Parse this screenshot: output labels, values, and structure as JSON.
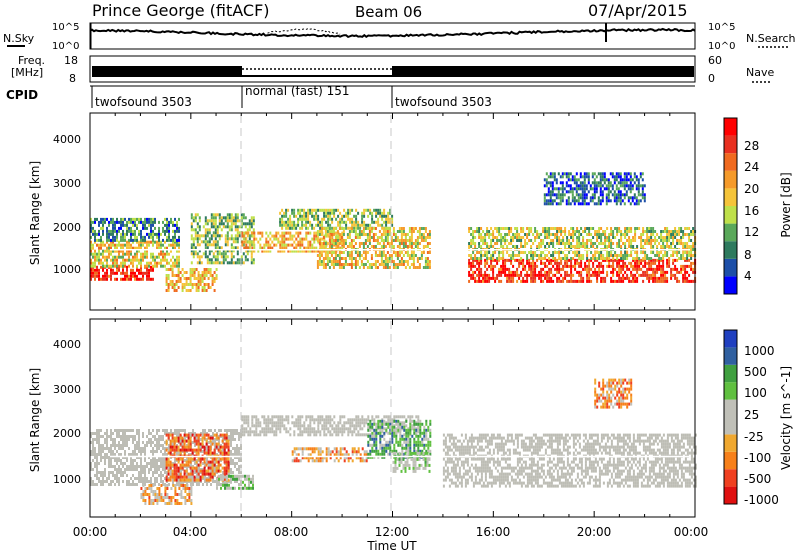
{
  "header": {
    "title": "Prince George (fitACF)",
    "beam": "Beam 06",
    "date": "07/Apr/2015"
  },
  "noise_panel": {
    "left_label": "N.Sky",
    "right_label": "N.Search",
    "left_ticks": [
      "10^5",
      "10^0"
    ],
    "right_ticks": [
      "10^5",
      "10^0"
    ]
  },
  "freq_panel": {
    "left_label_line1": "Freq.",
    "left_label_line2": "[MHz]",
    "left_ticks": [
      "18",
      "8"
    ],
    "right_label": "Nave",
    "right_ticks": [
      "60",
      "0"
    ]
  },
  "cpid_panel": {
    "label": "CPID",
    "segments": [
      {
        "name": "twofsound 3503",
        "start_h": 0,
        "end_h": 6
      },
      {
        "name": "normal (fast) 151",
        "start_h": 6,
        "end_h": 12
      },
      {
        "name": "twofsound 3503",
        "start_h": 12,
        "end_h": 24
      }
    ]
  },
  "axes": {
    "x_label": "Time UT",
    "x_ticks": [
      "00:00",
      "04:00",
      "08:00",
      "12:00",
      "16:00",
      "20:00",
      "00:00"
    ],
    "y_label": "Slant Range [km]",
    "y_ticks": [
      "1000",
      "2000",
      "3000",
      "4000"
    ]
  },
  "colors": {
    "power": [
      "#0000ff",
      "#1d4fa8",
      "#2e7a5e",
      "#5aa85a",
      "#bfe04a",
      "#f5c43a",
      "#f59a2a",
      "#f06a1f",
      "#e83020",
      "#ff0000"
    ],
    "velocity": [
      "#e01010",
      "#f04020",
      "#f7801a",
      "#f0a830",
      "#c0c0b8",
      "#c0c0b8",
      "#60c040",
      "#40a040",
      "#3060a0",
      "#2040c0"
    ],
    "ground_scatter": "#bdbdb5"
  },
  "power_colorbar": {
    "label": "Power [dB]",
    "ticks": [
      "28",
      "24",
      "20",
      "16",
      "12",
      "8",
      "4"
    ]
  },
  "velocity_colorbar": {
    "label": "Velocity [m s^-1]",
    "ticks": [
      "1000",
      "500",
      "100",
      "25",
      "-25",
      "-100",
      "-500",
      "-1000"
    ]
  },
  "chart_data": {
    "type": "heatmap",
    "title": "Prince George (fitACF)",
    "xlabel": "Time UT",
    "ylabel": "Slant Range [km]",
    "xlim": [
      0,
      24
    ],
    "ylim": [
      180,
      4500
    ],
    "panels": [
      {
        "name": "Power",
        "unit": "dB",
        "color_range": [
          0,
          30
        ],
        "regions": [
          {
            "t": [
              0,
              2.5
            ],
            "r": [
              850,
              1150
            ],
            "v": 26
          },
          {
            "t": [
              0,
              3.5
            ],
            "r": [
              1150,
              1700
            ],
            "v": 16
          },
          {
            "t": [
              0,
              3.5
            ],
            "r": [
              1700,
              2200
            ],
            "v": 8
          },
          {
            "t": [
              3,
              5
            ],
            "r": [
              600,
              1100
            ],
            "v": 18
          },
          {
            "t": [
              4,
              6.5
            ],
            "r": [
              1200,
              2300
            ],
            "v": 12
          },
          {
            "t": [
              6,
              10
            ],
            "r": [
              1500,
              1900
            ],
            "v": 18
          },
          {
            "t": [
              7.5,
              12
            ],
            "r": [
              2000,
              2400
            ],
            "v": 12
          },
          {
            "t": [
              9,
              13.5
            ],
            "r": [
              1100,
              2000
            ],
            "v": 16
          },
          {
            "t": [
              15,
              24
            ],
            "r": [
              800,
              1300
            ],
            "v": 26
          },
          {
            "t": [
              15,
              24
            ],
            "r": [
              1300,
              2000
            ],
            "v": 14
          },
          {
            "t": [
              18,
              22
            ],
            "r": [
              2500,
              3200
            ],
            "v": 6
          }
        ]
      },
      {
        "name": "Velocity",
        "unit": "m s^-1",
        "color_range": [
          -1000,
          1000
        ],
        "regions": [
          {
            "t": [
              0,
              6
            ],
            "r": [
              900,
              2100
            ],
            "v": 0,
            "ground_scatter": true
          },
          {
            "t": [
              6,
              13
            ],
            "r": [
              2000,
              2400
            ],
            "v": 0,
            "ground_scatter": true
          },
          {
            "t": [
              14,
              24
            ],
            "r": [
              850,
              2000
            ],
            "v": 0,
            "ground_scatter": true
          },
          {
            "t": [
              2,
              4
            ],
            "r": [
              500,
              900
            ],
            "v": -300
          },
          {
            "t": [
              3,
              5.5
            ],
            "r": [
              1000,
              2000
            ],
            "v": -600
          },
          {
            "t": [
              5,
              6.5
            ],
            "r": [
              800,
              1100
            ],
            "v": 150
          },
          {
            "t": [
              8,
              11
            ],
            "r": [
              1400,
              1700
            ],
            "v": -350
          },
          {
            "t": [
              11,
              13.5
            ],
            "r": [
              1500,
              2300
            ],
            "v": 400
          },
          {
            "t": [
              12,
              13.5
            ],
            "r": [
              1200,
              1600
            ],
            "v": 150
          },
          {
            "t": [
              20,
              21.5
            ],
            "r": [
              2600,
              3200
            ],
            "v": -400
          }
        ]
      }
    ]
  }
}
